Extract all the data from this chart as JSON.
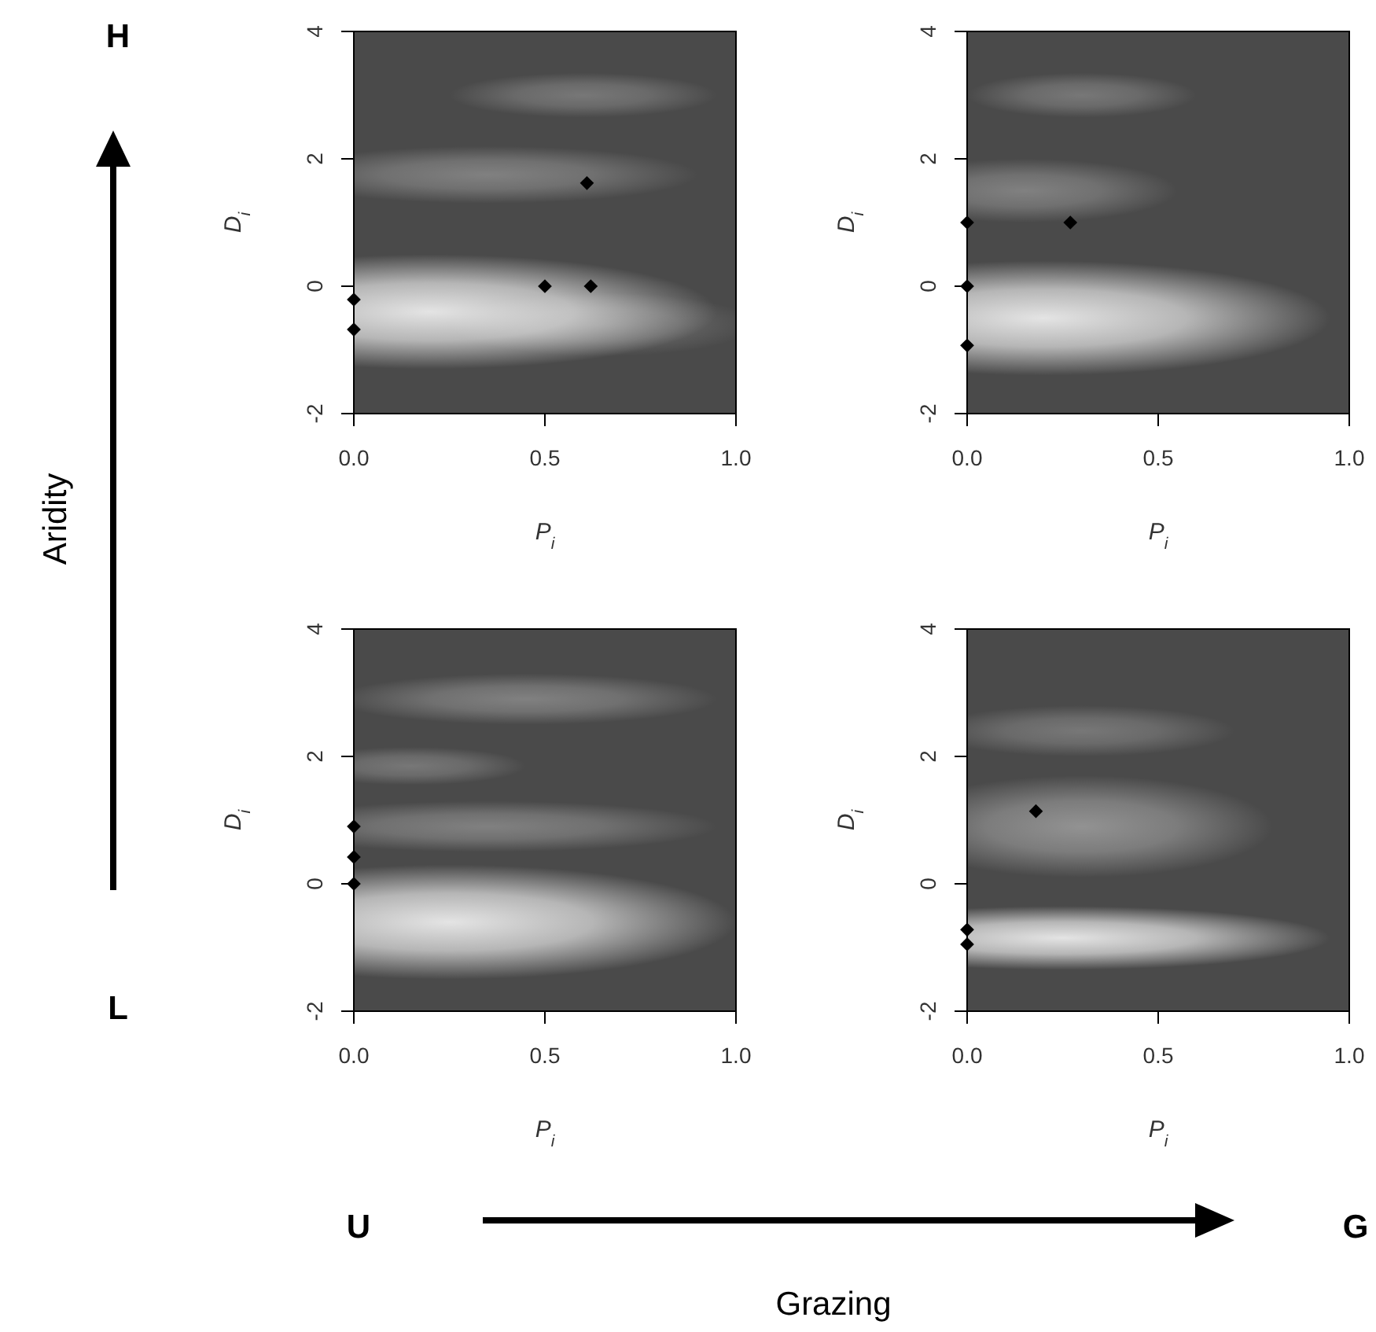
{
  "chart_data": [
    {
      "type": "scatter",
      "xlabel": "P$_{i}$",
      "ylabel": "D$_{i}$",
      "xlim": [
        0,
        1
      ],
      "ylim": [
        -2,
        4
      ],
      "xticks": [
        {
          "value": 0,
          "label": "0.0"
        },
        {
          "value": 0.5,
          "label": "0.5"
        },
        {
          "value": 1,
          "label": "1.0"
        }
      ],
      "yticks": [
        -2,
        0,
        2,
        4
      ],
      "marker": "diamond",
      "grid": false,
      "series": [
        {
          "color": "#000000",
          "x": [
            0.61,
            0.5,
            0.62,
            0,
            0
          ],
          "values": [
            1.62,
            0,
            0,
            -0.21,
            -0.68
          ]
        }
      ],
      "annotations": [
        "H",
        "L",
        "Aridity",
        "U",
        "G",
        "Grazing"
      ]
    },
    {
      "type": "scatter",
      "xlabel": "P$_{i}$",
      "ylabel": "D$_{i}$",
      "xlim": [
        0,
        1
      ],
      "ylim": [
        -2,
        4
      ],
      "xticks": [
        {
          "value": 0,
          "label": "0.0"
        },
        {
          "value": 0.5,
          "label": "0.5"
        },
        {
          "value": 1,
          "label": "1.0"
        }
      ],
      "yticks": [
        -2,
        0,
        2,
        4
      ],
      "marker": "diamond",
      "grid": false,
      "series": [
        {
          "color": "#000000",
          "x": [
            0,
            0.27,
            0,
            0
          ],
          "values": [
            1.0,
            1.0,
            0,
            -0.93
          ]
        }
      ]
    },
    {
      "type": "scatter",
      "xlabel": "P$_{i}$",
      "ylabel": "D$_{i}$",
      "xlim": [
        0,
        1
      ],
      "ylim": [
        -2,
        4
      ],
      "xticks": [
        {
          "value": 0,
          "label": "0.0"
        },
        {
          "value": 0.5,
          "label": "0.5"
        },
        {
          "value": 1,
          "label": "1.0"
        }
      ],
      "yticks": [
        -2,
        0,
        2,
        4
      ],
      "marker": "diamond",
      "grid": false,
      "series": [
        {
          "color": "#000000",
          "x": [
            0,
            0,
            0
          ],
          "values": [
            0.9,
            0.42,
            0
          ]
        }
      ]
    },
    {
      "type": "scatter",
      "xlabel": "P$_{i}$",
      "ylabel": "D$_{i}$",
      "xlim": [
        0,
        1
      ],
      "ylim": [
        -2,
        4
      ],
      "xticks": [
        {
          "value": 0,
          "label": "0.0"
        },
        {
          "value": 0.5,
          "label": "0.5"
        },
        {
          "value": 1,
          "label": "1.0"
        }
      ],
      "yticks": [
        -2,
        0,
        2,
        4
      ],
      "marker": "diamond",
      "grid": false,
      "series": [
        {
          "color": "#000000",
          "x": [
            0.18,
            0,
            0
          ],
          "values": [
            1.14,
            -0.72,
            -0.95
          ]
        }
      ]
    }
  ]
}
